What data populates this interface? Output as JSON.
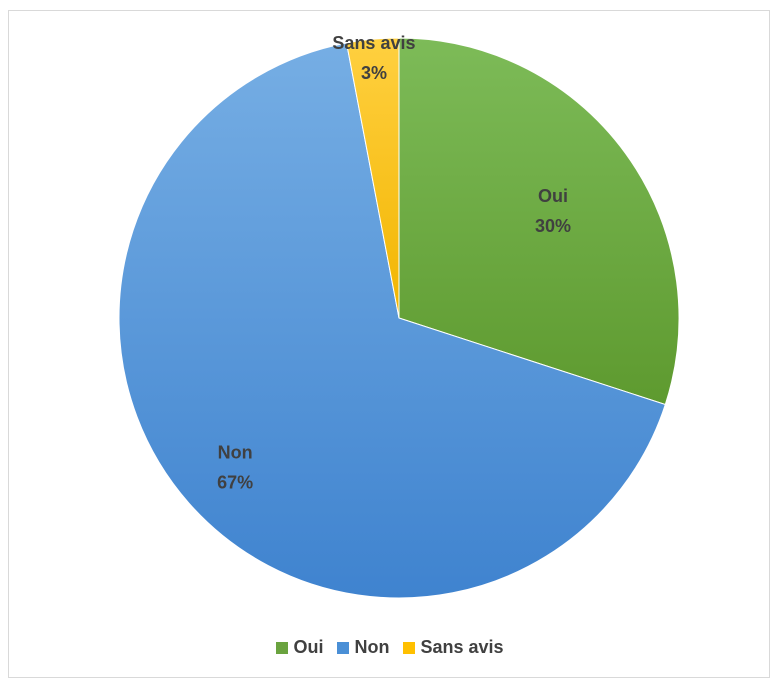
{
  "chart_data": {
    "type": "pie",
    "title": "",
    "categories": [
      "Oui",
      "Non",
      "Sans avis"
    ],
    "values": [
      30,
      67,
      3
    ],
    "data_labels": [
      "30%",
      "67%",
      "3%"
    ],
    "colors": [
      "#6aa33f",
      "#4a8fd6",
      "#ffc000"
    ],
    "legend_position": "bottom",
    "grid": false
  }
}
